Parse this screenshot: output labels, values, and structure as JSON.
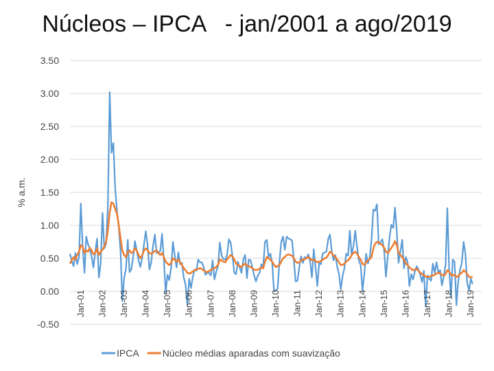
{
  "title": "Núcleos – IPCA   - jan/2001 a ago/2019",
  "chart_data": {
    "type": "line",
    "title": "Núcleos – IPCA   - jan/2001 a ago/2019",
    "xlabel": "",
    "ylabel": "% a.m.",
    "ylim": [
      -0.5,
      3.5
    ],
    "yticks": [
      -0.5,
      0.0,
      0.5,
      1.0,
      1.5,
      2.0,
      2.5,
      3.0,
      3.5
    ],
    "ytick_labels": [
      "-0.50",
      "0.00",
      "0.50",
      "1.00",
      "1.50",
      "2.00",
      "2.50",
      "3.00",
      "3.50"
    ],
    "grid": true,
    "legend_position": "bottom",
    "x_tick_labels": [
      "Jan-01",
      "Jan-02",
      "Jan-03",
      "Jan-04",
      "Jan-05",
      "Jan-06",
      "Jan-07",
      "Jan-08",
      "Jan-09",
      "Jan-10",
      "Jan-11",
      "Jan-12",
      "Jan-13",
      "Jan-14",
      "Jan-15",
      "Jan-16",
      "Jan-17",
      "Jan-18",
      "Jan-19"
    ],
    "x_start": "2001-01",
    "x_end": "2019-08",
    "series": [
      {
        "name": "IPCA",
        "color": "#5B9BD5",
        "yearly_values": [
          [
            0.57,
            0.46,
            0.38,
            0.58,
            0.41,
            0.52,
            1.33,
            0.7,
            0.28,
            0.83,
            0.71,
            0.65
          ],
          [
            0.52,
            0.36,
            0.6,
            0.8,
            0.21,
            0.42,
            1.19,
            0.65,
            0.72,
            1.31,
            3.02,
            2.1
          ],
          [
            2.25,
            1.57,
            1.23,
            0.97,
            0.61,
            -0.15,
            0.2,
            0.34,
            0.78,
            0.29,
            0.34,
            0.52
          ],
          [
            0.76,
            0.61,
            0.47,
            0.37,
            0.51,
            0.71,
            0.91,
            0.69,
            0.33,
            0.44,
            0.69,
            0.86
          ],
          [
            0.58,
            0.59,
            0.61,
            0.87,
            0.49,
            -0.02,
            0.25,
            0.17,
            0.35,
            0.75,
            0.55,
            0.36
          ],
          [
            0.59,
            0.41,
            0.43,
            0.21,
            0.1,
            -0.21,
            0.19,
            0.05,
            0.21,
            0.33,
            0.31,
            0.48
          ],
          [
            0.44,
            0.44,
            0.37,
            0.25,
            0.28,
            0.28,
            0.24,
            0.47,
            0.18,
            0.3,
            0.38,
            0.74
          ],
          [
            0.54,
            0.49,
            0.48,
            0.55,
            0.79,
            0.74,
            0.53,
            0.28,
            0.26,
            0.45,
            0.36,
            0.28
          ],
          [
            0.48,
            0.55,
            0.2,
            0.48,
            0.47,
            0.36,
            0.24,
            0.15,
            0.24,
            0.28,
            0.41,
            0.37
          ],
          [
            0.75,
            0.78,
            0.52,
            0.57,
            0.43,
            0.0,
            0.01,
            0.04,
            0.45,
            0.75,
            0.83,
            0.63
          ],
          [
            0.83,
            0.8,
            0.79,
            0.77,
            0.47,
            0.15,
            0.16,
            0.37,
            0.53,
            0.43,
            0.52,
            0.5
          ],
          [
            0.56,
            0.45,
            0.21,
            0.64,
            0.36,
            0.08,
            0.43,
            0.41,
            0.57,
            0.59,
            0.6,
            0.79
          ],
          [
            0.86,
            0.6,
            0.47,
            0.55,
            0.37,
            0.26,
            0.03,
            0.24,
            0.35,
            0.57,
            0.54,
            0.92
          ],
          [
            0.55,
            0.69,
            0.92,
            0.67,
            0.46,
            0.4,
            0.01,
            0.25,
            0.57,
            0.42,
            0.51,
            0.78
          ],
          [
            1.24,
            1.22,
            1.32,
            0.71,
            0.74,
            0.79,
            0.62,
            0.22,
            0.54,
            0.82,
            1.01,
            0.96
          ],
          [
            1.27,
            0.9,
            0.43,
            0.61,
            0.78,
            0.35,
            0.52,
            0.44,
            0.08,
            0.26,
            0.18,
            0.3
          ],
          [
            0.38,
            0.33,
            0.25,
            0.14,
            0.31,
            -0.23,
            0.24,
            0.19,
            0.16,
            0.42,
            0.28,
            0.44
          ],
          [
            0.29,
            0.32,
            0.09,
            0.22,
            0.4,
            1.26,
            0.33,
            -0.09,
            0.48,
            0.45,
            -0.21,
            0.15
          ],
          [
            0.32,
            0.43,
            0.75,
            0.57,
            0.13,
            0.01,
            0.19,
            0.11
          ]
        ]
      },
      {
        "name": "Núcleo médias aparadas com suavização",
        "color": "#ED7D31",
        "yearly_values": [
          [
            0.42,
            0.47,
            0.52,
            0.48,
            0.55,
            0.6,
            0.7,
            0.68,
            0.58,
            0.62,
            0.6,
            0.66
          ],
          [
            0.62,
            0.56,
            0.58,
            0.65,
            0.55,
            0.6,
            0.63,
            0.68,
            0.75,
            0.93,
            1.2,
            1.35
          ],
          [
            1.33,
            1.25,
            1.18,
            1.0,
            0.8,
            0.62,
            0.55,
            0.52,
            0.6,
            0.62,
            0.58,
            0.6
          ],
          [
            0.65,
            0.62,
            0.55,
            0.5,
            0.55,
            0.62,
            0.65,
            0.62,
            0.58,
            0.57,
            0.59,
            0.61
          ],
          [
            0.62,
            0.58,
            0.55,
            0.58,
            0.52,
            0.45,
            0.42,
            0.4,
            0.43,
            0.5,
            0.48,
            0.45
          ],
          [
            0.48,
            0.44,
            0.4,
            0.35,
            0.32,
            0.28,
            0.27,
            0.28,
            0.3,
            0.32,
            0.33,
            0.34
          ],
          [
            0.35,
            0.34,
            0.32,
            0.3,
            0.29,
            0.31,
            0.32,
            0.34,
            0.35,
            0.37,
            0.4,
            0.48
          ],
          [
            0.47,
            0.45,
            0.44,
            0.48,
            0.52,
            0.55,
            0.53,
            0.48,
            0.42,
            0.4,
            0.38,
            0.37
          ],
          [
            0.4,
            0.42,
            0.39,
            0.38,
            0.37,
            0.35,
            0.33,
            0.32,
            0.33,
            0.34,
            0.36,
            0.35
          ],
          [
            0.45,
            0.52,
            0.5,
            0.48,
            0.45,
            0.4,
            0.37,
            0.38,
            0.4,
            0.45,
            0.5,
            0.52
          ],
          [
            0.55,
            0.56,
            0.55,
            0.54,
            0.5,
            0.45,
            0.43,
            0.44,
            0.47,
            0.48,
            0.49,
            0.5
          ],
          [
            0.52,
            0.5,
            0.47,
            0.48,
            0.46,
            0.44,
            0.45,
            0.46,
            0.48,
            0.5,
            0.51,
            0.55
          ],
          [
            0.6,
            0.58,
            0.54,
            0.52,
            0.48,
            0.44,
            0.4,
            0.4,
            0.42,
            0.45,
            0.47,
            0.5
          ],
          [
            0.55,
            0.58,
            0.6,
            0.57,
            0.52,
            0.48,
            0.42,
            0.4,
            0.44,
            0.47,
            0.49,
            0.52
          ],
          [
            0.65,
            0.72,
            0.75,
            0.74,
            0.72,
            0.7,
            0.66,
            0.6,
            0.58,
            0.62,
            0.66,
            0.7
          ],
          [
            0.76,
            0.7,
            0.58,
            0.55,
            0.52,
            0.48,
            0.42,
            0.4,
            0.36,
            0.34,
            0.32,
            0.33
          ],
          [
            0.34,
            0.31,
            0.28,
            0.26,
            0.25,
            0.22,
            0.22,
            0.22,
            0.23,
            0.24,
            0.25,
            0.27
          ],
          [
            0.28,
            0.27,
            0.25,
            0.24,
            0.26,
            0.32,
            0.3,
            0.25,
            0.24,
            0.25,
            0.22,
            0.23
          ],
          [
            0.26,
            0.28,
            0.32,
            0.3,
            0.26,
            0.22,
            0.21,
            0.22
          ]
        ]
      }
    ]
  }
}
